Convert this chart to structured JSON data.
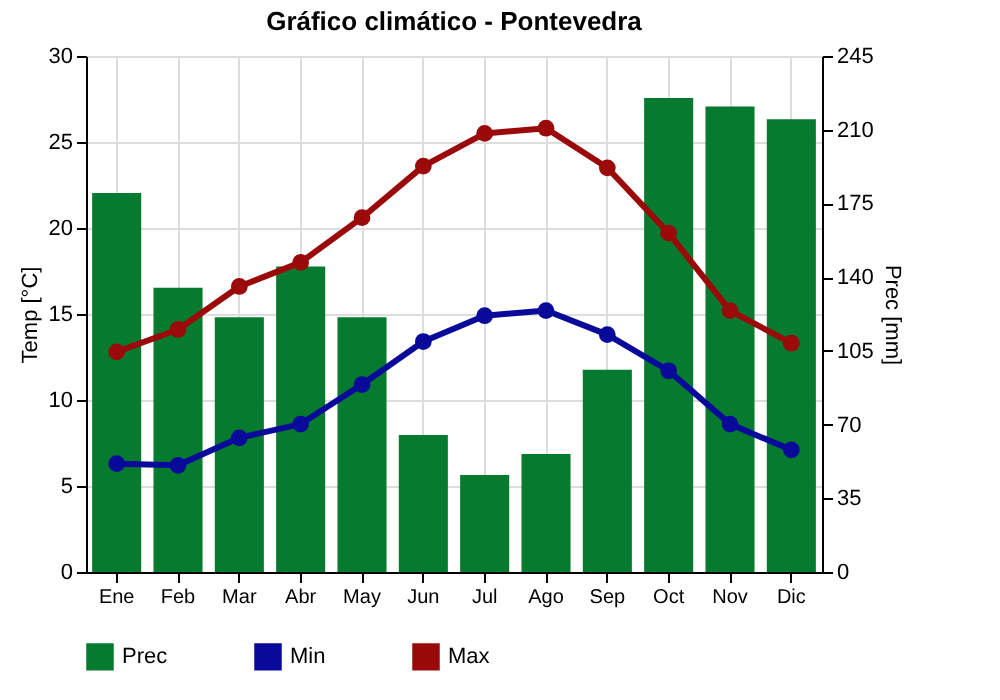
{
  "chart_data": {
    "type": "bar",
    "title": "Gráfico climático - Pontevedra",
    "ylabel": "Temp [°C]",
    "y2label": "Prec [mm]",
    "categories": [
      "Ene",
      "Feb",
      "Mar",
      "Abr",
      "May",
      "Jun",
      "Jul",
      "Ago",
      "Sep",
      "Oct",
      "Nov",
      "Dic"
    ],
    "series": [
      {
        "name": "Prec",
        "axis": "y2",
        "color": "#067a2e",
        "values": [
          180,
          135,
          121,
          145,
          121,
          65,
          46,
          56,
          96,
          225,
          221,
          215
        ]
      },
      {
        "name": "Min",
        "type": "line",
        "color": "#0a0a9a",
        "values": [
          6.3,
          6.2,
          7.8,
          8.6,
          10.9,
          13.4,
          14.9,
          15.2,
          13.8,
          11.7,
          8.6,
          7.1
        ]
      },
      {
        "name": "Max",
        "type": "line",
        "color": "#9a0a0a",
        "values": [
          12.8,
          14.1,
          16.6,
          18.0,
          20.6,
          23.6,
          25.5,
          25.8,
          23.5,
          19.7,
          15.2,
          13.3
        ]
      }
    ],
    "ylim": [
      0,
      30
    ],
    "yticks": [
      0,
      5,
      10,
      15,
      20,
      25,
      30
    ],
    "y2lim": [
      0,
      245
    ],
    "y2ticks": [
      0,
      35,
      70,
      105,
      140,
      175,
      210,
      245
    ],
    "grid": true,
    "legend": "bottom",
    "marker": "circle"
  }
}
